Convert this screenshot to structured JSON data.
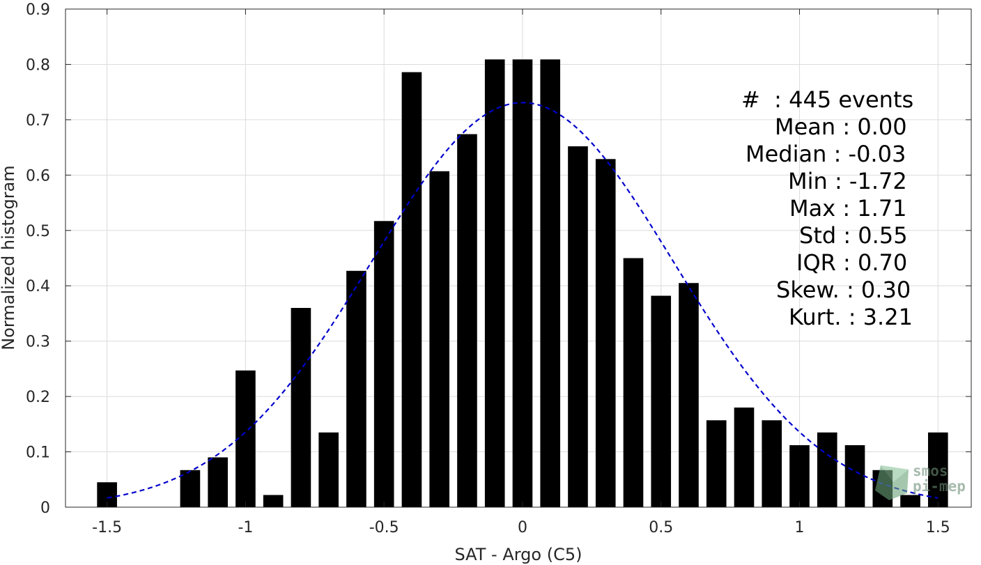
{
  "chart_data": {
    "type": "bar",
    "xlabel": "SAT - Argo (C5)",
    "ylabel": "Normalized histogram",
    "xlim": [
      -1.65,
      1.62
    ],
    "ylim": [
      0,
      0.9
    ],
    "xticks": [
      -1.5,
      -1,
      -0.5,
      0,
      0.5,
      1,
      1.5
    ],
    "xtick_labels": [
      "-1.5",
      "-1",
      "-0.5",
      "0",
      "0.5",
      "1",
      "1.5"
    ],
    "yticks": [
      0,
      0.1,
      0.2,
      0.3,
      0.4,
      0.5,
      0.6,
      0.7,
      0.8,
      0.9
    ],
    "ytick_labels": [
      "0",
      "0.1",
      "0.2",
      "0.3",
      "0.4",
      "0.5",
      "0.6",
      "0.7",
      "0.8",
      "0.9"
    ],
    "grid": true,
    "bar_color": "#000000",
    "bars": [
      {
        "x": -1.5,
        "value": 0.045
      },
      {
        "x": -1.2,
        "value": 0.067
      },
      {
        "x": -1.1,
        "value": 0.09
      },
      {
        "x": -1.0,
        "value": 0.247
      },
      {
        "x": -0.9,
        "value": 0.022
      },
      {
        "x": -0.8,
        "value": 0.36
      },
      {
        "x": -0.7,
        "value": 0.135
      },
      {
        "x": -0.6,
        "value": 0.427
      },
      {
        "x": -0.5,
        "value": 0.517
      },
      {
        "x": -0.4,
        "value": 0.786
      },
      {
        "x": -0.3,
        "value": 0.607
      },
      {
        "x": -0.2,
        "value": 0.674
      },
      {
        "x": -0.1,
        "value": 0.809
      },
      {
        "x": 0.0,
        "value": 0.809
      },
      {
        "x": 0.1,
        "value": 0.809
      },
      {
        "x": 0.2,
        "value": 0.652
      },
      {
        "x": 0.3,
        "value": 0.629
      },
      {
        "x": 0.4,
        "value": 0.45
      },
      {
        "x": 0.5,
        "value": 0.382
      },
      {
        "x": 0.6,
        "value": 0.405
      },
      {
        "x": 0.7,
        "value": 0.157
      },
      {
        "x": 0.8,
        "value": 0.18
      },
      {
        "x": 0.9,
        "value": 0.157
      },
      {
        "x": 1.0,
        "value": 0.112
      },
      {
        "x": 1.1,
        "value": 0.135
      },
      {
        "x": 1.2,
        "value": 0.112
      },
      {
        "x": 1.3,
        "value": 0.067
      },
      {
        "x": 1.4,
        "value": 0.022
      },
      {
        "x": 1.5,
        "value": 0.135
      }
    ],
    "fit_curve": {
      "type": "gaussian",
      "style": "dashed",
      "color": "#0000cc",
      "mean": 0.0,
      "std": 0.545,
      "peak": 0.731,
      "x_range": [
        -1.5,
        1.5
      ]
    },
    "stats": [
      "#  : 445 events",
      "Mean : 0.00",
      "Median : -0.03",
      "Min : -1.72",
      "Max : 1.71",
      "Std : 0.55",
      "IQR : 0.70",
      "Skew. : 0.30",
      "Kurt. : 3.21"
    ]
  },
  "watermark": {
    "line1": "smos",
    "line2": "pi-mep"
  }
}
